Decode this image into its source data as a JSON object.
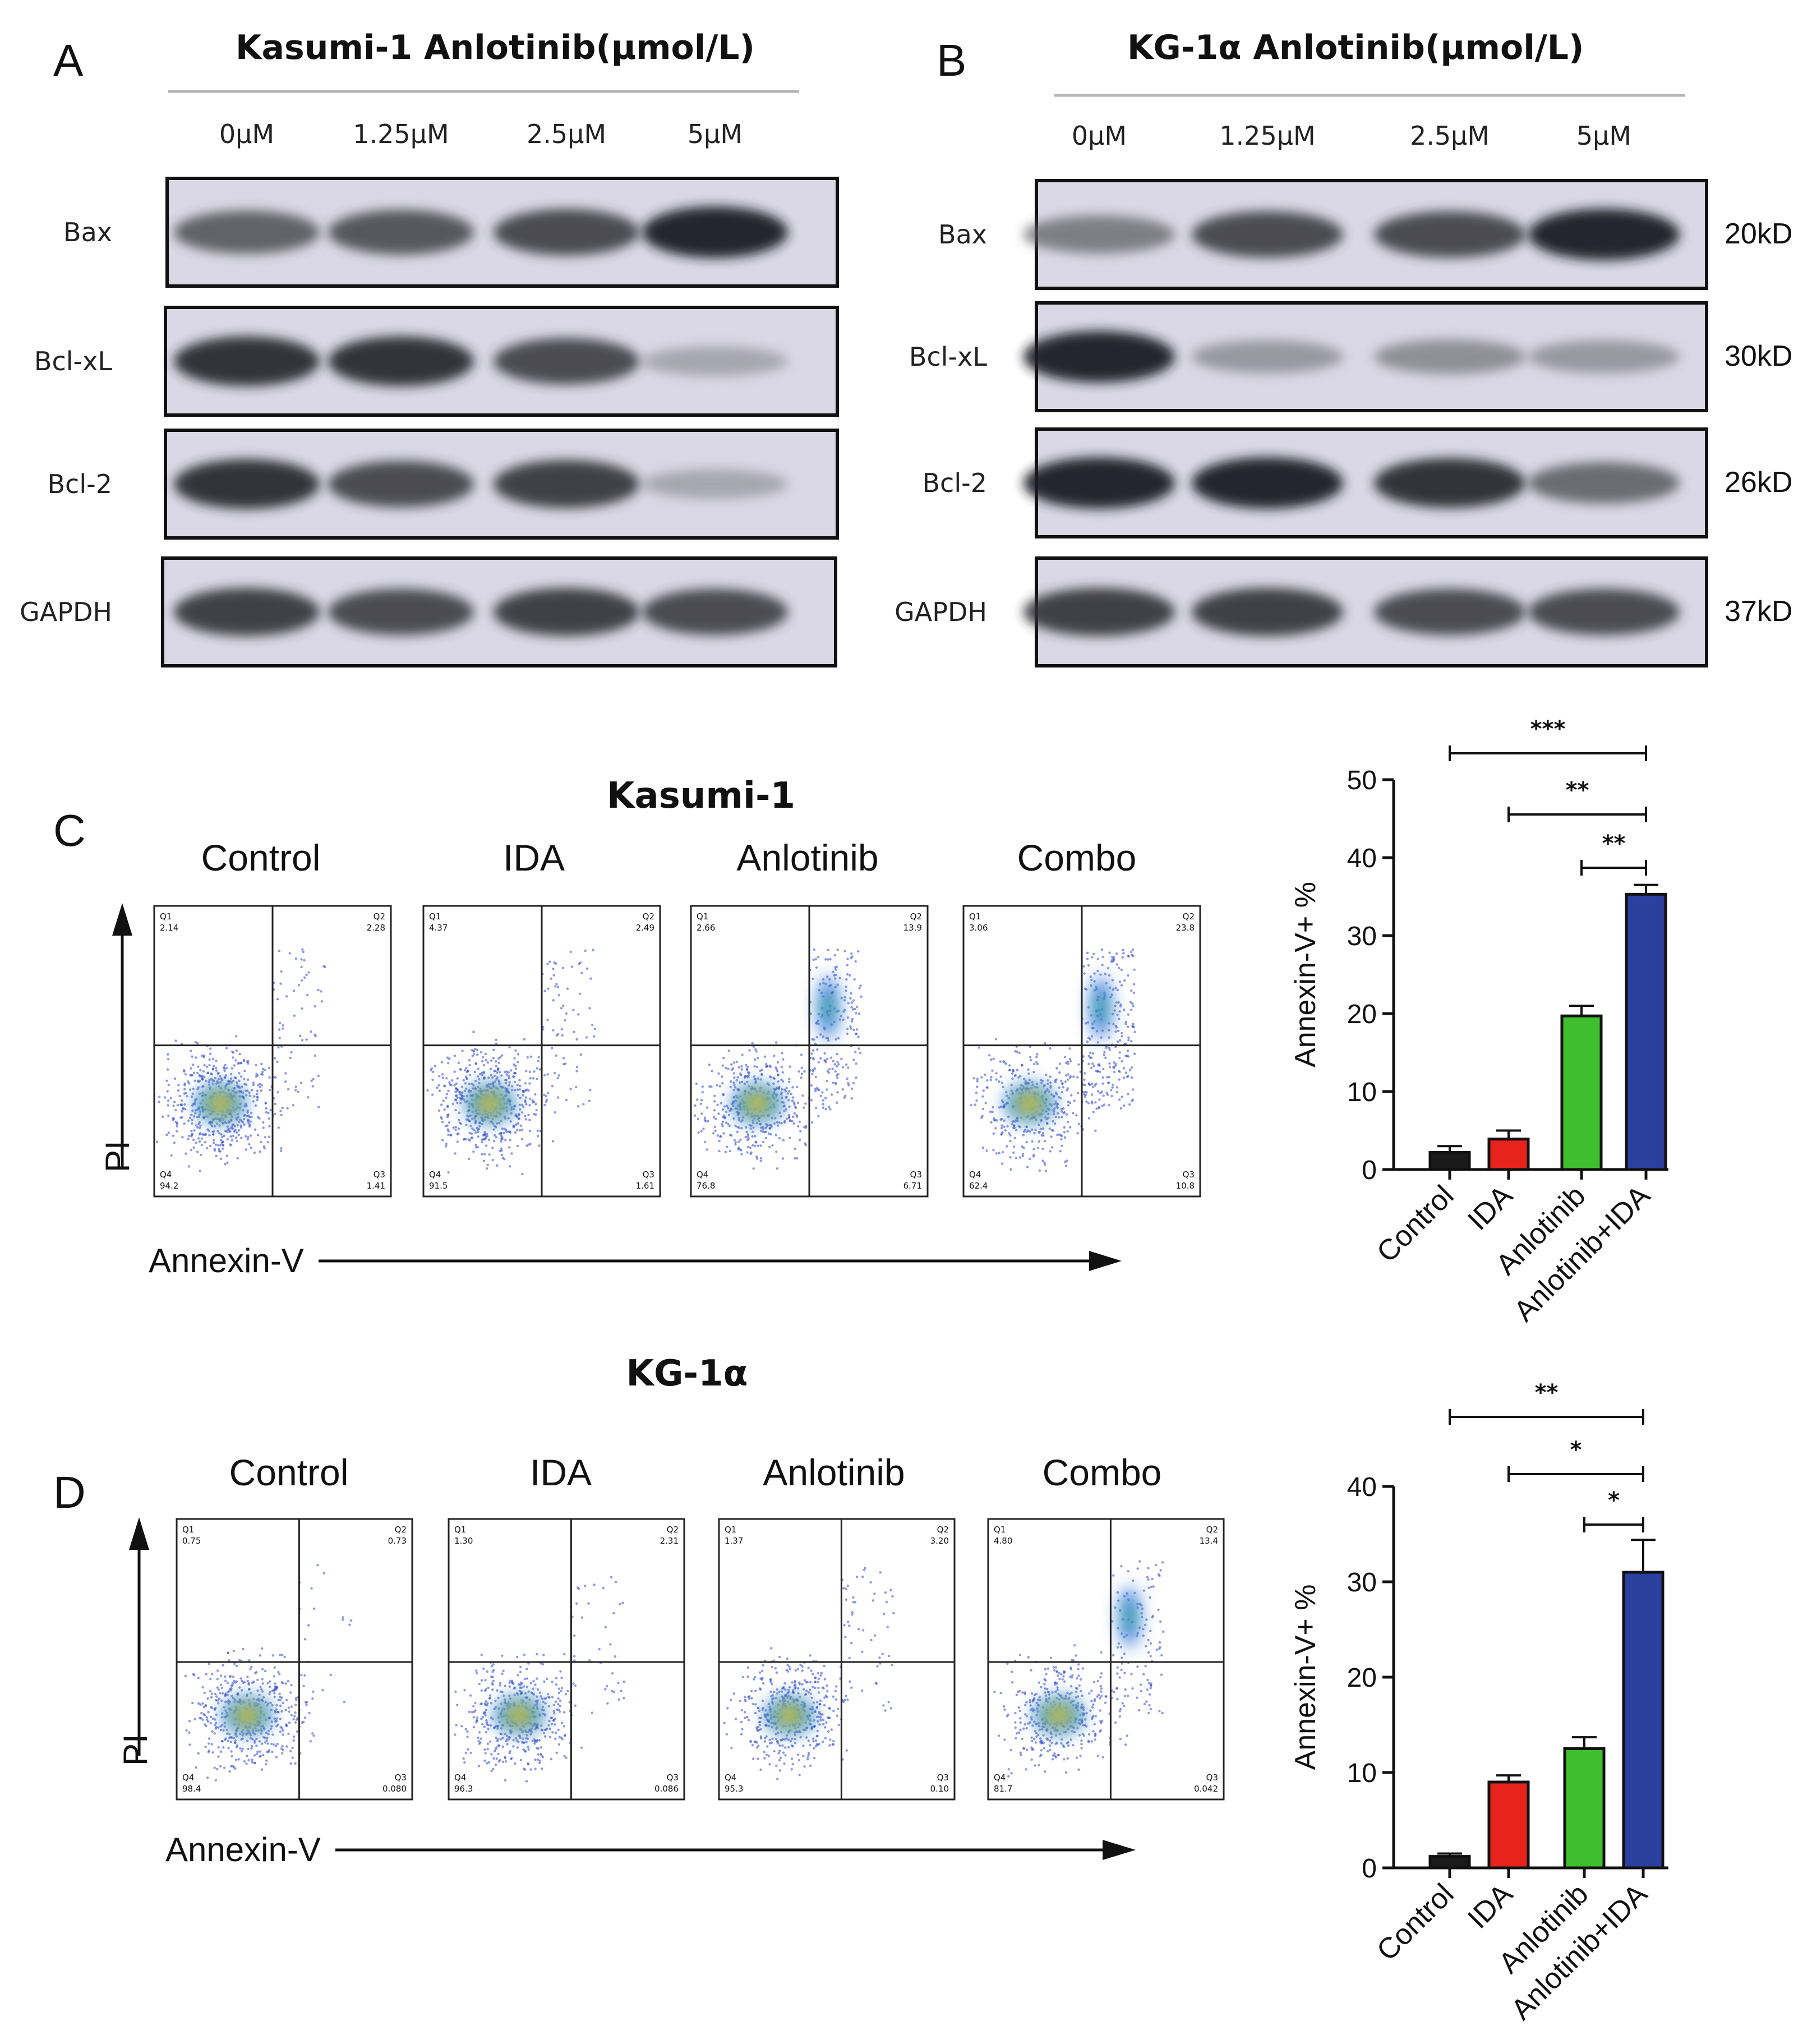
{
  "panel_a": {
    "letter": "A",
    "title": "Kasumi-1   Anlotinib(μmol/L)",
    "concentrations": [
      "0μM",
      "1.25μM",
      "2.5μM",
      "5μM"
    ],
    "proteins": [
      "Bax",
      "Bcl-xL",
      "Bcl-2",
      "GAPDH"
    ],
    "band_intensity": [
      [
        0.75,
        0.8,
        0.85,
        1.0
      ],
      [
        0.95,
        0.95,
        0.85,
        0.35
      ],
      [
        0.95,
        0.85,
        0.9,
        0.35
      ],
      [
        0.9,
        0.85,
        0.9,
        0.85
      ]
    ]
  },
  "panel_b": {
    "letter": "B",
    "title": "KG-1α   Anlotinib(μmol/L)",
    "concentrations": [
      "0μM",
      "1.25μM",
      "2.5μM",
      "5μM"
    ],
    "proteins": [
      "Bax",
      "Bcl-xL",
      "Bcl-2",
      "GAPDH"
    ],
    "weights": [
      "20kD",
      "30kD",
      "26kD",
      "37kD"
    ],
    "band_intensity": [
      [
        0.6,
        0.85,
        0.85,
        1.0
      ],
      [
        1.0,
        0.45,
        0.5,
        0.45
      ],
      [
        1.0,
        1.0,
        0.95,
        0.7
      ],
      [
        0.9,
        0.9,
        0.85,
        0.85
      ]
    ]
  },
  "panel_c": {
    "letter": "C",
    "cell_line": "Kasumi-1",
    "groups": [
      "Control",
      "IDA",
      "Anlotinib",
      "Combo"
    ],
    "x_axis": "Annexin-V",
    "y_axis": "PI",
    "plots": [
      {
        "q1": "Q1",
        "q1v": "2.14",
        "q2": "Q2",
        "q2v": "2.28",
        "q3": "Q3",
        "q3v": "1.41",
        "q4": "Q4",
        "q4v": "94.2"
      },
      {
        "q1": "Q1",
        "q1v": "4.37",
        "q2": "Q2",
        "q2v": "2.49",
        "q3": "Q3",
        "q3v": "1.61",
        "q4": "Q4",
        "q4v": "91.5"
      },
      {
        "q1": "Q1",
        "q1v": "2.66",
        "q2": "Q2",
        "q2v": "13.9",
        "q3": "Q3",
        "q3v": "6.71",
        "q4": "Q4",
        "q4v": "76.8"
      },
      {
        "q1": "Q1",
        "q1v": "3.06",
        "q2": "Q2",
        "q2v": "23.8",
        "q3": "Q3",
        "q3v": "10.8",
        "q4": "Q4",
        "q4v": "62.4"
      }
    ]
  },
  "panel_d": {
    "letter": "D",
    "cell_line": "KG-1α",
    "groups": [
      "Control",
      "IDA",
      "Anlotinib",
      "Combo"
    ],
    "x_axis": "Annexin-V",
    "y_axis": "PI",
    "plots": [
      {
        "q1": "Q1",
        "q1v": "0.75",
        "q2": "Q2",
        "q2v": "0.73",
        "q3": "Q3",
        "q3v": "0.080",
        "q4": "Q4",
        "q4v": "98.4"
      },
      {
        "q1": "Q1",
        "q1v": "1.30",
        "q2": "Q2",
        "q2v": "2.31",
        "q3": "Q3",
        "q3v": "0.086",
        "q4": "Q4",
        "q4v": "96.3"
      },
      {
        "q1": "Q1",
        "q1v": "1.37",
        "q2": "Q2",
        "q2v": "3.20",
        "q3": "Q3",
        "q3v": "0.10",
        "q4": "Q4",
        "q4v": "95.3"
      },
      {
        "q1": "Q1",
        "q1v": "4.80",
        "q2": "Q2",
        "q2v": "13.4",
        "q3": "Q3",
        "q3v": "0.042",
        "q4": "Q4",
        "q4v": "81.7"
      }
    ]
  },
  "chart_data": [
    {
      "type": "bar",
      "categories": [
        "Control",
        "IDA",
        "Anlotinib",
        "Anlotinib+IDA"
      ],
      "values": [
        2.2,
        3.9,
        19.7,
        35.3
      ],
      "errors": [
        0.8,
        1.1,
        1.3,
        1.2
      ],
      "colors": [
        "#1a1a1a",
        "#e8231c",
        "#3fbf2f",
        "#2b3f9f"
      ],
      "ylabel": "Annexin-V+ %",
      "ylim": [
        0,
        50
      ],
      "yticks": [
        0,
        10,
        20,
        30,
        40,
        50
      ],
      "significance": [
        {
          "from": 0,
          "to": 3,
          "label": "***"
        },
        {
          "from": 1,
          "to": 3,
          "label": "**"
        },
        {
          "from": 2,
          "to": 3,
          "label": "**"
        }
      ]
    },
    {
      "type": "bar",
      "categories": [
        "Control",
        "IDA",
        "Anlotinib",
        "Anlotinib+IDA"
      ],
      "values": [
        1.2,
        9.0,
        12.5,
        31.0
      ],
      "errors": [
        0.3,
        0.7,
        1.2,
        3.4
      ],
      "colors": [
        "#1a1a1a",
        "#e8231c",
        "#3fbf2f",
        "#2b3f9f"
      ],
      "ylabel": "Annexin-V+ %",
      "ylim": [
        0,
        40
      ],
      "yticks": [
        0,
        10,
        20,
        30,
        40
      ],
      "significance": [
        {
          "from": 0,
          "to": 3,
          "label": "**"
        },
        {
          "from": 1,
          "to": 3,
          "label": "*"
        },
        {
          "from": 2,
          "to": 3,
          "label": "*"
        }
      ]
    }
  ]
}
